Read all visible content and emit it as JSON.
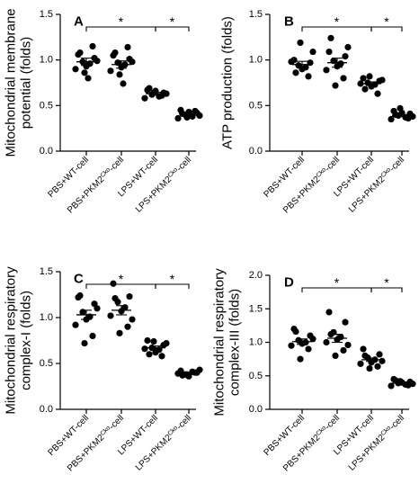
{
  "chart_data": [
    {
      "type": "scatter",
      "panel": "A",
      "ylabel_lines": [
        "Mitochondrial membrane",
        "potential (folds)"
      ],
      "ylim": [
        0.0,
        1.5
      ],
      "yticks": [
        "0.0",
        "0.5",
        "1.0",
        "1.5"
      ],
      "categories": [
        {
          "pre": "PBS+WT-cell"
        },
        {
          "pre": "PBS+PKM2",
          "sup": "Cko",
          "post": "-cell"
        },
        {
          "pre": "LPS+WT-cell"
        },
        {
          "pre": "LPS+PKM2",
          "sup": "Cko",
          "post": "-cell"
        }
      ],
      "series": [
        {
          "values": [
            1.06,
            1.02,
            0.98,
            0.96,
            0.93,
            0.9,
            0.99,
            1.08,
            1.15,
            0.86,
            0.8
          ]
        },
        {
          "values": [
            1.05,
            1.01,
            0.97,
            0.95,
            0.92,
            0.88,
            0.98,
            1.08,
            1.14,
            0.84,
            0.74
          ]
        },
        {
          "values": [
            0.67,
            0.64,
            0.62,
            0.6,
            0.66,
            0.58,
            0.63,
            0.69,
            0.61,
            0.64
          ]
        },
        {
          "values": [
            0.45,
            0.42,
            0.4,
            0.38,
            0.43,
            0.36,
            0.39,
            0.41,
            0.44,
            0.37
          ]
        }
      ],
      "means": [
        0.98,
        0.95,
        0.63,
        0.41
      ],
      "sems": [
        0.04,
        0.04,
        0.015,
        0.015
      ],
      "significance": [
        {
          "from": 0,
          "to": 2,
          "label": "*"
        },
        {
          "from": 2,
          "to": 3,
          "label": "*"
        }
      ]
    },
    {
      "type": "scatter",
      "panel": "B",
      "ylabel_lines": [
        "ATP production (folds)"
      ],
      "ylim": [
        0.0,
        1.5
      ],
      "yticks": [
        "0.0",
        "0.5",
        "1.0",
        "1.5"
      ],
      "categories": [
        {
          "pre": "PBS+WT-cell"
        },
        {
          "pre": "PBS+PKM2",
          "sup": "Cko",
          "post": "-cell"
        },
        {
          "pre": "LPS+WT-cell"
        },
        {
          "pre": "LPS+PKM2",
          "sup": "Cko",
          "post": "-cell"
        }
      ],
      "series": [
        {
          "values": [
            1.0,
            0.97,
            0.94,
            0.92,
            0.9,
            0.98,
            1.09,
            0.86,
            0.82,
            1.19
          ]
        },
        {
          "values": [
            1.09,
            1.04,
            0.99,
            0.96,
            0.93,
            0.89,
            1.14,
            1.24,
            0.8,
            0.72
          ]
        },
        {
          "values": [
            0.8,
            0.77,
            0.75,
            0.73,
            0.71,
            0.74,
            0.78,
            0.68,
            0.63,
            0.82
          ]
        },
        {
          "values": [
            0.44,
            0.41,
            0.39,
            0.37,
            0.42,
            0.35,
            0.38,
            0.4,
            0.36,
            0.47
          ]
        }
      ],
      "means": [
        0.95,
        0.97,
        0.74,
        0.39
      ],
      "sems": [
        0.035,
        0.05,
        0.02,
        0.012
      ],
      "significance": [
        {
          "from": 0,
          "to": 2,
          "label": "*"
        },
        {
          "from": 2,
          "to": 3,
          "label": "*"
        }
      ]
    },
    {
      "type": "scatter",
      "panel": "C",
      "ylabel_lines": [
        "Mitochondrial respiratory",
        "complex-I (folds)"
      ],
      "ylim": [
        0.0,
        1.5
      ],
      "yticks": [
        "0.0",
        "0.5",
        "1.0",
        "1.5"
      ],
      "categories": [
        {
          "pre": "PBS+WT-cell"
        },
        {
          "pre": "PBS+PKM2",
          "sup": "Cko",
          "post": "-cell"
        },
        {
          "pre": "LPS+WT-cell"
        },
        {
          "pre": "LPS+PKM2",
          "sup": "Cko",
          "post": "-cell"
        }
      ],
      "series": [
        {
          "values": [
            1.22,
            1.15,
            1.06,
            1.01,
            0.98,
            0.92,
            1.1,
            1.24,
            0.8,
            0.72
          ]
        },
        {
          "values": [
            1.37,
            1.23,
            1.17,
            1.11,
            1.07,
            1.02,
            0.98,
            1.21,
            0.9,
            0.83
          ]
        },
        {
          "values": [
            0.75,
            0.7,
            0.67,
            0.65,
            0.62,
            0.66,
            0.72,
            0.6,
            0.58,
            0.74
          ]
        },
        {
          "values": [
            0.42,
            0.4,
            0.38,
            0.41,
            0.36,
            0.39,
            0.43,
            0.37,
            0.4,
            0.38
          ]
        }
      ],
      "means": [
        1.03,
        1.08,
        0.67,
        0.39
      ],
      "sems": [
        0.05,
        0.05,
        0.02,
        0.01
      ],
      "significance": [
        {
          "from": 0,
          "to": 2,
          "label": "*"
        },
        {
          "from": 2,
          "to": 3,
          "label": "*"
        }
      ]
    },
    {
      "type": "scatter",
      "panel": "D",
      "ylabel_lines": [
        "Mitochondrial respiratory",
        "complex-III (folds)"
      ],
      "ylim": [
        0.0,
        2.0
      ],
      "yticks": [
        "0.0",
        "0.5",
        "1.0",
        "1.5",
        "2.0"
      ],
      "categories": [
        {
          "pre": "PBS+WT-cell"
        },
        {
          "pre": "PBS+PKM2",
          "sup": "Cko",
          "post": "-cell"
        },
        {
          "pre": "LPS+WT-cell"
        },
        {
          "pre": "LPS+PKM2",
          "sup": "Cko",
          "post": "-cell"
        }
      ],
      "series": [
        {
          "values": [
            1.2,
            1.1,
            1.03,
            1.0,
            0.98,
            0.95,
            1.05,
            1.16,
            0.9,
            0.75
          ]
        },
        {
          "values": [
            1.45,
            1.3,
            1.15,
            1.08,
            1.04,
            1.0,
            0.96,
            1.12,
            0.88,
            0.8
          ]
        },
        {
          "values": [
            0.9,
            0.82,
            0.77,
            0.74,
            0.7,
            0.68,
            0.72,
            0.8,
            0.64,
            0.61
          ]
        },
        {
          "values": [
            0.45,
            0.41,
            0.39,
            0.37,
            0.4,
            0.35,
            0.38,
            0.43,
            0.36,
            0.42
          ]
        }
      ],
      "means": [
        1.01,
        1.06,
        0.74,
        0.39
      ],
      "sems": [
        0.04,
        0.06,
        0.025,
        0.012
      ],
      "significance": [
        {
          "from": 0,
          "to": 2,
          "label": "*"
        },
        {
          "from": 2,
          "to": 3,
          "label": "*"
        }
      ]
    }
  ]
}
